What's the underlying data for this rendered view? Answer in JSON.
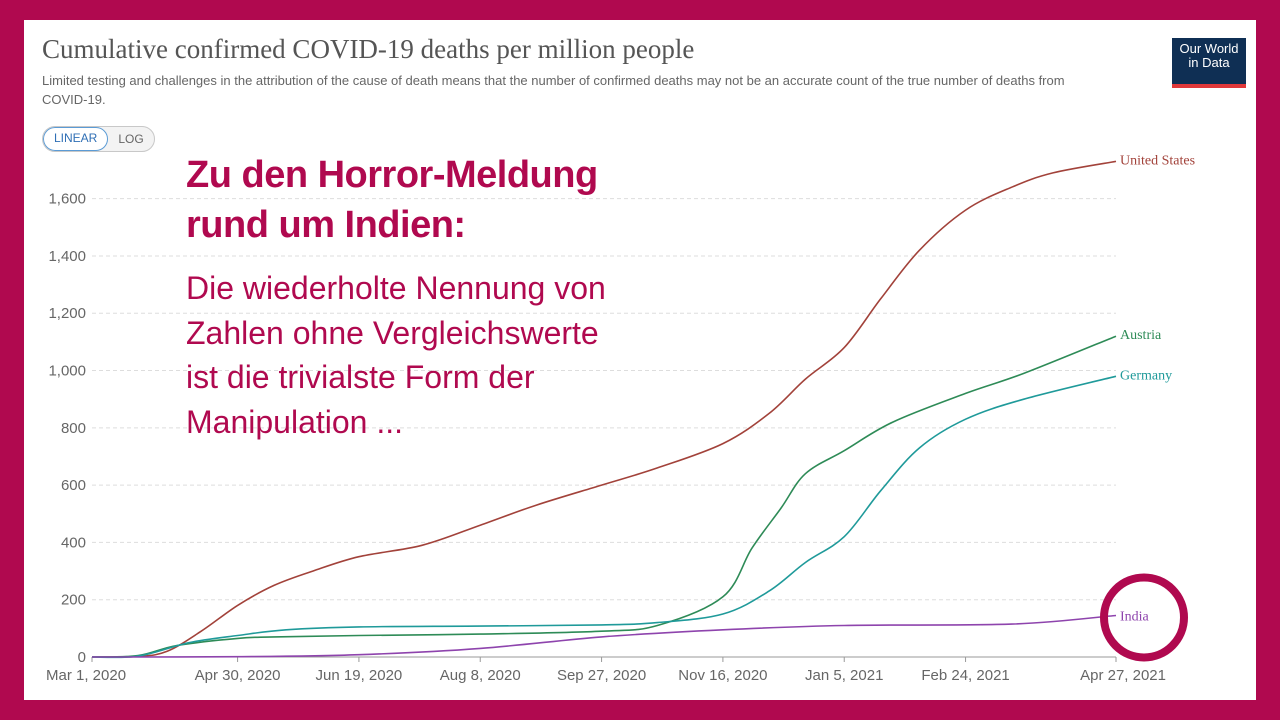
{
  "header": {
    "title": "Cumulative confirmed COVID-19 deaths per million people",
    "subtitle": "Limited testing and challenges in the attribution of the cause of death means that the number of confirmed deaths may not be an accurate count of the true number of deaths from COVID-19."
  },
  "logo": {
    "line1": "Our World",
    "line2": "in Data"
  },
  "scale_toggle": {
    "linear": "LINEAR",
    "log": "LOG",
    "selected": "LINEAR"
  },
  "overlay": {
    "headline_line1": "Zu den Horror-Meldung",
    "headline_line2": "rund um Indien:",
    "body_line1": "Die wiederholte Nennung von",
    "body_line2": "Zahlen ohne Vergleichswerte",
    "body_line3": "ist die trivialste Form der",
    "body_line4": "Manipulation ..."
  },
  "colors": {
    "frame": "#b0094f",
    "highlight_circle": "#b0094f",
    "united_states": "#a2423a",
    "austria": "#2e8b57",
    "germany": "#1f9a9a",
    "india": "#8e44ad"
  },
  "chart_data": {
    "type": "line",
    "x_axis": {
      "type": "date",
      "range": [
        "2020-03-01",
        "2021-04-27"
      ],
      "ticks": [
        "Mar 1, 2020",
        "Apr 30, 2020",
        "Jun 19, 2020",
        "Aug 8, 2020",
        "Sep 27, 2020",
        "Nov 16, 2020",
        "Jan 5, 2021",
        "Feb 24, 2021",
        "Apr 27, 2021"
      ]
    },
    "y_axis": {
      "range": [
        0,
        1700
      ],
      "ticks": [
        0,
        200,
        400,
        600,
        800,
        1000,
        1200,
        1400,
        1600
      ],
      "tick_labels": [
        "0",
        "200",
        "400",
        "600",
        "800",
        "1,000",
        "1,200",
        "1,400",
        "1,600"
      ]
    },
    "grid": "horizontal dashed",
    "series": [
      {
        "name": "United States",
        "color": "#a2423a",
        "points": [
          [
            "2020-03-01",
            0
          ],
          [
            "2020-03-20",
            2
          ],
          [
            "2020-04-01",
            20
          ],
          [
            "2020-04-15",
            90
          ],
          [
            "2020-04-30",
            180
          ],
          [
            "2020-05-15",
            250
          ],
          [
            "2020-05-31",
            300
          ],
          [
            "2020-06-19",
            350
          ],
          [
            "2020-07-15",
            390
          ],
          [
            "2020-08-08",
            460
          ],
          [
            "2020-08-31",
            530
          ],
          [
            "2020-09-27",
            600
          ],
          [
            "2020-10-20",
            660
          ],
          [
            "2020-11-16",
            745
          ],
          [
            "2020-12-05",
            850
          ],
          [
            "2020-12-20",
            970
          ],
          [
            "2021-01-05",
            1080
          ],
          [
            "2021-01-20",
            1250
          ],
          [
            "2021-02-05",
            1420
          ],
          [
            "2021-02-24",
            1560
          ],
          [
            "2021-03-15",
            1640
          ],
          [
            "2021-04-01",
            1690
          ],
          [
            "2021-04-27",
            1730
          ]
        ]
      },
      {
        "name": "Austria",
        "color": "#2e8b57",
        "points": [
          [
            "2020-03-01",
            0
          ],
          [
            "2020-03-20",
            5
          ],
          [
            "2020-04-05",
            40
          ],
          [
            "2020-04-30",
            65
          ],
          [
            "2020-05-15",
            70
          ],
          [
            "2020-06-19",
            75
          ],
          [
            "2020-08-08",
            80
          ],
          [
            "2020-09-27",
            90
          ],
          [
            "2020-10-20",
            110
          ],
          [
            "2020-11-16",
            210
          ],
          [
            "2020-11-28",
            380
          ],
          [
            "2020-12-10",
            520
          ],
          [
            "2020-12-20",
            640
          ],
          [
            "2021-01-05",
            720
          ],
          [
            "2021-01-25",
            820
          ],
          [
            "2021-02-24",
            920
          ],
          [
            "2021-03-20",
            990
          ],
          [
            "2021-04-27",
            1120
          ]
        ]
      },
      {
        "name": "Germany",
        "color": "#1f9a9a",
        "points": [
          [
            "2020-03-01",
            0
          ],
          [
            "2020-03-20",
            3
          ],
          [
            "2020-04-10",
            50
          ],
          [
            "2020-04-30",
            75
          ],
          [
            "2020-05-20",
            95
          ],
          [
            "2020-06-19",
            105
          ],
          [
            "2020-08-08",
            108
          ],
          [
            "2020-09-27",
            112
          ],
          [
            "2020-10-20",
            120
          ],
          [
            "2020-11-16",
            150
          ],
          [
            "2020-12-05",
            230
          ],
          [
            "2020-12-20",
            330
          ],
          [
            "2021-01-05",
            420
          ],
          [
            "2021-01-20",
            580
          ],
          [
            "2021-02-05",
            730
          ],
          [
            "2021-02-24",
            830
          ],
          [
            "2021-03-20",
            900
          ],
          [
            "2021-04-27",
            980
          ]
        ]
      },
      {
        "name": "India",
        "color": "#8e44ad",
        "points": [
          [
            "2020-03-01",
            0
          ],
          [
            "2020-05-01",
            1
          ],
          [
            "2020-06-19",
            8
          ],
          [
            "2020-08-08",
            30
          ],
          [
            "2020-09-27",
            70
          ],
          [
            "2020-11-16",
            95
          ],
          [
            "2021-01-05",
            110
          ],
          [
            "2021-03-15",
            115
          ],
          [
            "2021-04-27",
            145
          ]
        ]
      }
    ]
  }
}
